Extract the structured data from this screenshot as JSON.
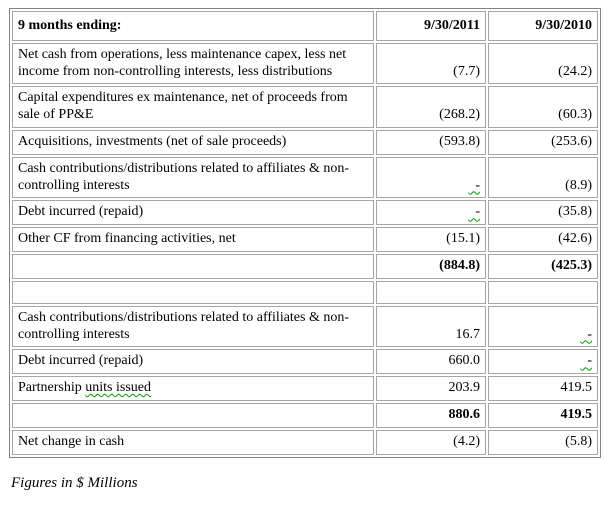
{
  "table": {
    "columns": [
      "9 months ending:",
      "9/30/2011",
      "9/30/2010"
    ],
    "rows": [
      {
        "label": "Net cash from operations, less maintenance capex, less net income from non-controlling interests, less distributions",
        "v1": "(7.7)",
        "v2": "(24.2)"
      },
      {
        "label": "Capital expenditures ex maintenance, net of proceeds from sale of PP&E",
        "v1": "(268.2)",
        "v2": "(60.3)"
      },
      {
        "label": "Acquisitions, investments (net of sale proceeds)",
        "v1": "(593.8)",
        "v2": "(253.6)"
      },
      {
        "label": "Cash contributions/distributions related to affiliates & non-controlling interests",
        "v1": "-",
        "v1_squiggle": true,
        "v2": "(8.9)"
      },
      {
        "label": "Debt incurred (repaid)",
        "v1": "-",
        "v1_squiggle": true,
        "v2": "(35.8)"
      },
      {
        "label": "Other CF from financing activities, net",
        "v1": "(15.1)",
        "v2": "(42.6)"
      },
      {
        "label": "",
        "v1": "(884.8)",
        "v2": "(425.3)",
        "bold": true
      },
      {
        "label": "",
        "v1": "",
        "v2": "",
        "spacer": true
      },
      {
        "label": "Cash contributions/distributions related to affiliates & non-controlling interests",
        "v1": "16.7",
        "v2": "-",
        "v2_squiggle": true
      },
      {
        "label": "Debt incurred (repaid)",
        "v1": "660.0",
        "v2": "-",
        "v2_squiggle": true
      },
      {
        "label": "Partnership units issued",
        "label_plain": "Partnership ",
        "label_squiggle": "units issued",
        "v1": "203.9",
        "v2": "419.5"
      },
      {
        "label": "",
        "v1": "880.6",
        "v2": "419.5",
        "bold": true
      },
      {
        "label": "Net change in cash",
        "v1": "(4.2)",
        "v2": "(5.8)"
      }
    ]
  },
  "caption": "Figures in $ Millions",
  "colors": {
    "cell_border": "#a6a6a6",
    "outer_border": "#848484",
    "squiggle_green": "#00a000",
    "text": "#000000",
    "background": "#ffffff"
  }
}
